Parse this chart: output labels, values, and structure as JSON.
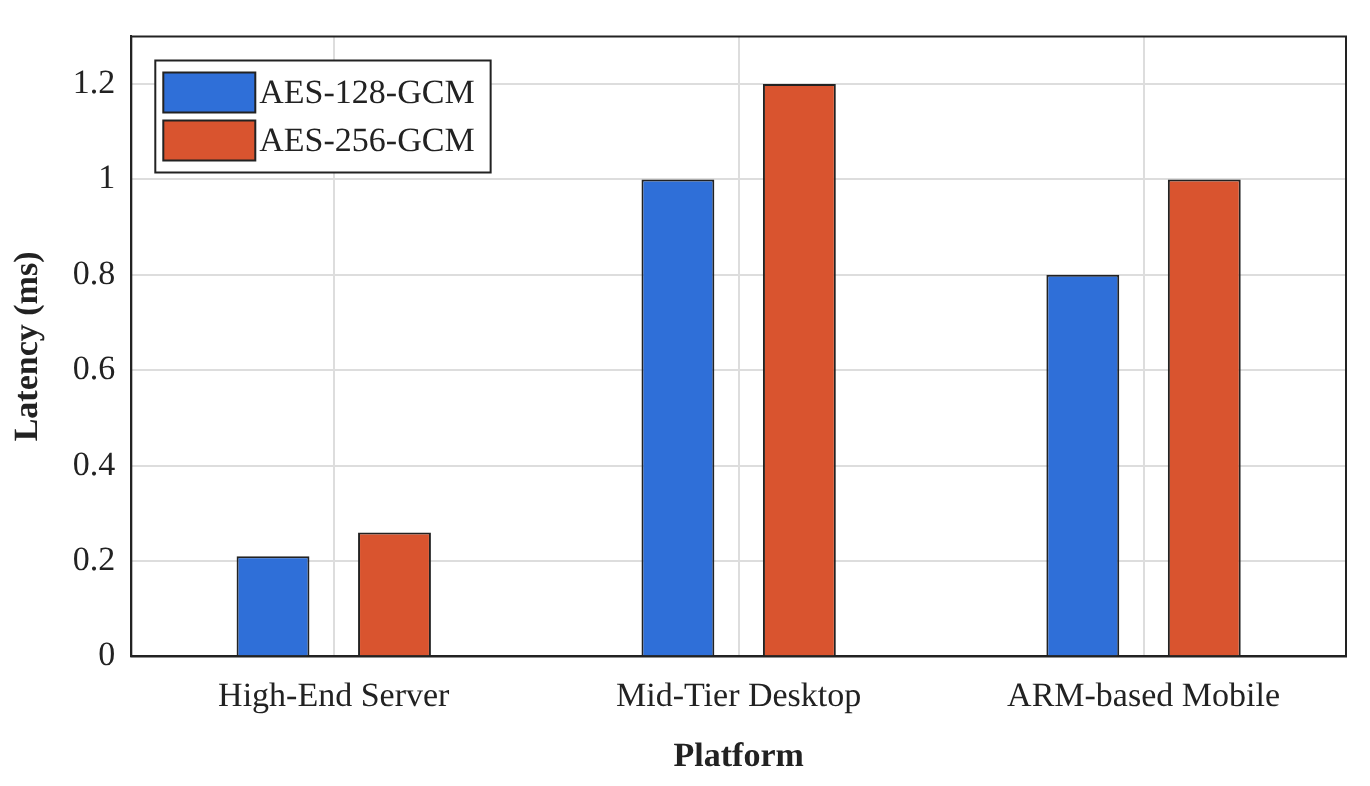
{
  "chart_data": {
    "type": "bar",
    "xlabel": "Platform",
    "ylabel": "Latency (ms)",
    "categories": [
      "High-End Server",
      "Mid-Tier Desktop",
      "ARM-based Mobile"
    ],
    "series": [
      {
        "name": "AES-128-GCM",
        "color": "#2f6fd8",
        "values": [
          0.21,
          1.0,
          0.8
        ]
      },
      {
        "name": "AES-256-GCM",
        "color": "#d9542f",
        "values": [
          0.26,
          1.2,
          1.0
        ]
      }
    ],
    "ylim": [
      0,
      1.3
    ],
    "yticks": [
      0,
      0.2,
      0.4,
      0.6,
      0.8,
      1,
      1.2
    ],
    "grid": true,
    "legend": "top left"
  }
}
